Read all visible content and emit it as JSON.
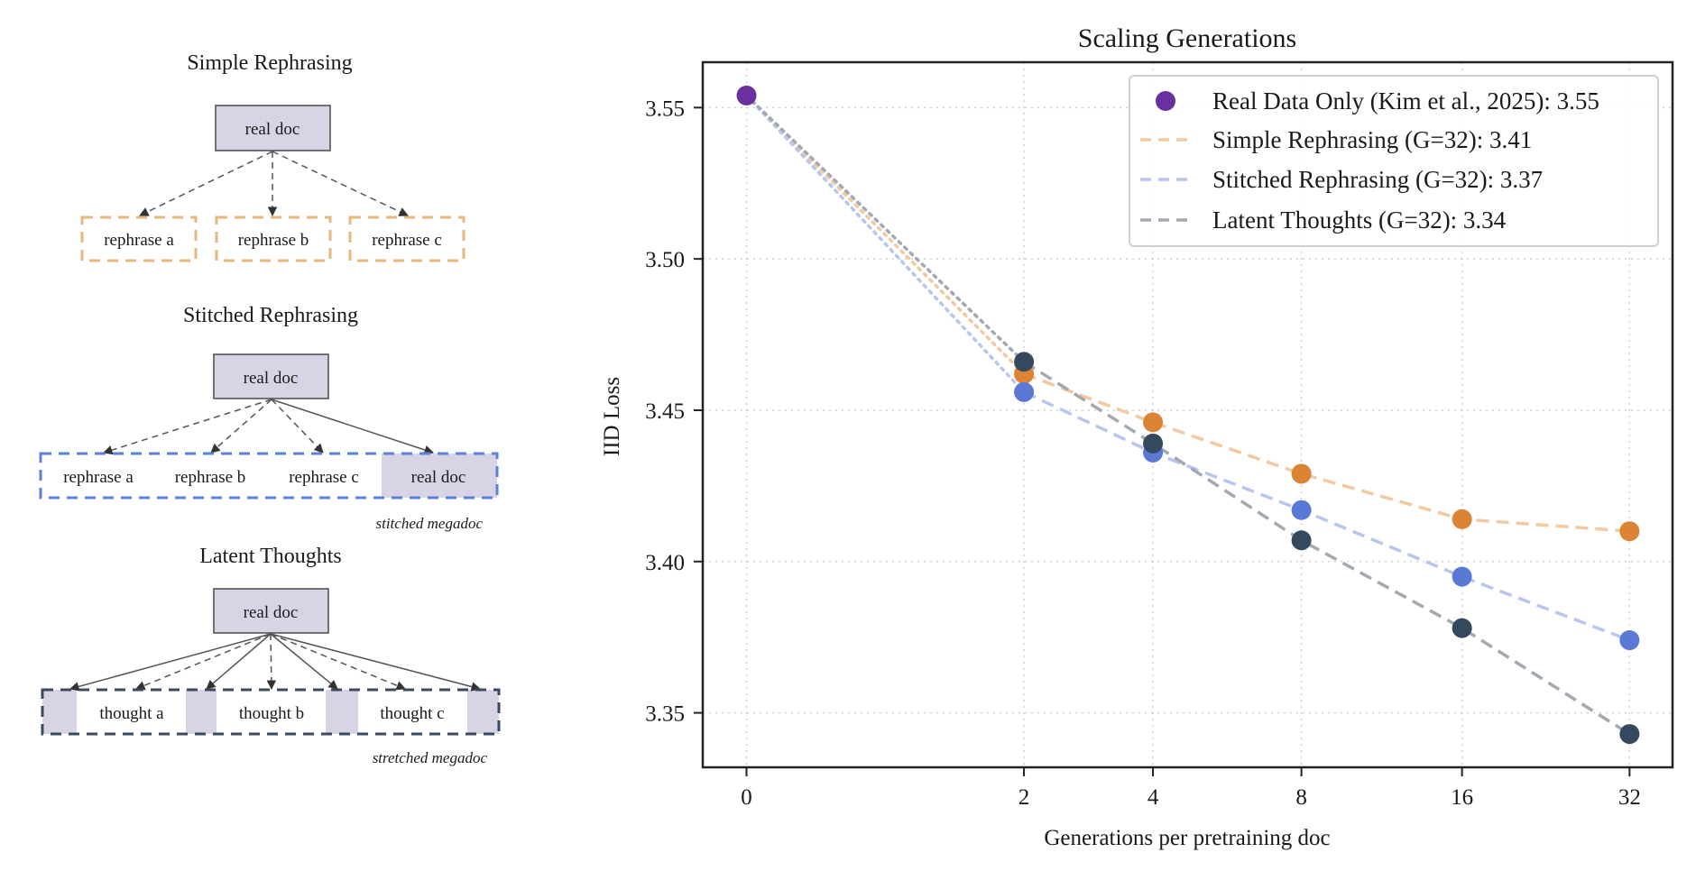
{
  "diagram": {
    "panels": [
      {
        "title": "Simple Rephrasing",
        "source": "real doc",
        "targets": [
          "rephrase a",
          "rephrase b",
          "rephrase c"
        ],
        "caption": ""
      },
      {
        "title": "Stitched Rephrasing",
        "source": "real doc",
        "segments": [
          "rephrase a",
          "rephrase b",
          "rephrase c",
          "real doc"
        ],
        "caption": "stitched megadoc"
      },
      {
        "title": "Latent Thoughts",
        "source": "real doc",
        "segments": [
          "thought a",
          "thought b",
          "thought c"
        ],
        "caption": "stretched megadoc"
      }
    ],
    "colors": {
      "doc_fill": "#d8d4e6",
      "doc_border": "#4a4a4a",
      "simple_border": "#e8b77e",
      "stitched_border": "#5b7fdb",
      "latent_border": "#3a4a5e",
      "arrow": "#555555"
    }
  },
  "chart_data": {
    "type": "line",
    "title": "Scaling Generations",
    "xlabel": "Generations per pretraining doc",
    "ylabel": "IID Loss",
    "x_scale": "log2(x+1)",
    "x_ticks": [
      0,
      2,
      4,
      8,
      16,
      32
    ],
    "x_tick_labels": [
      "0",
      "2",
      "4",
      "8",
      "16",
      "32"
    ],
    "y_ticks": [
      3.35,
      3.4,
      3.45,
      3.5,
      3.55
    ],
    "y_tick_labels": [
      "3.35",
      "3.40",
      "3.45",
      "3.50",
      "3.55"
    ],
    "ylim": [
      3.332,
      3.565
    ],
    "grid": true,
    "legend_position": "top-right",
    "baseline": {
      "name": "Real Data Only (Kim et al., 2025): 3.55",
      "x": 0,
      "y": 3.554,
      "color": "#6a30a0"
    },
    "series": [
      {
        "name": "Simple Rephrasing (G=32): 3.41",
        "x": [
          2,
          4,
          8,
          16,
          32
        ],
        "values": [
          3.462,
          3.446,
          3.429,
          3.414,
          3.41
        ],
        "color": "#db8435",
        "line_color": "#f2c9a1"
      },
      {
        "name": "Stitched Rephrasing (G=32): 3.37",
        "x": [
          2,
          4,
          8,
          16,
          32
        ],
        "values": [
          3.456,
          3.436,
          3.417,
          3.395,
          3.374
        ],
        "color": "#5a79d4",
        "line_color": "#b7c6ef"
      },
      {
        "name": "Latent Thoughts (G=32): 3.34",
        "x": [
          2,
          4,
          8,
          16,
          32
        ],
        "values": [
          3.466,
          3.439,
          3.407,
          3.378,
          3.343
        ],
        "color": "#34495e",
        "line_color": "#a3a9b0"
      }
    ]
  }
}
